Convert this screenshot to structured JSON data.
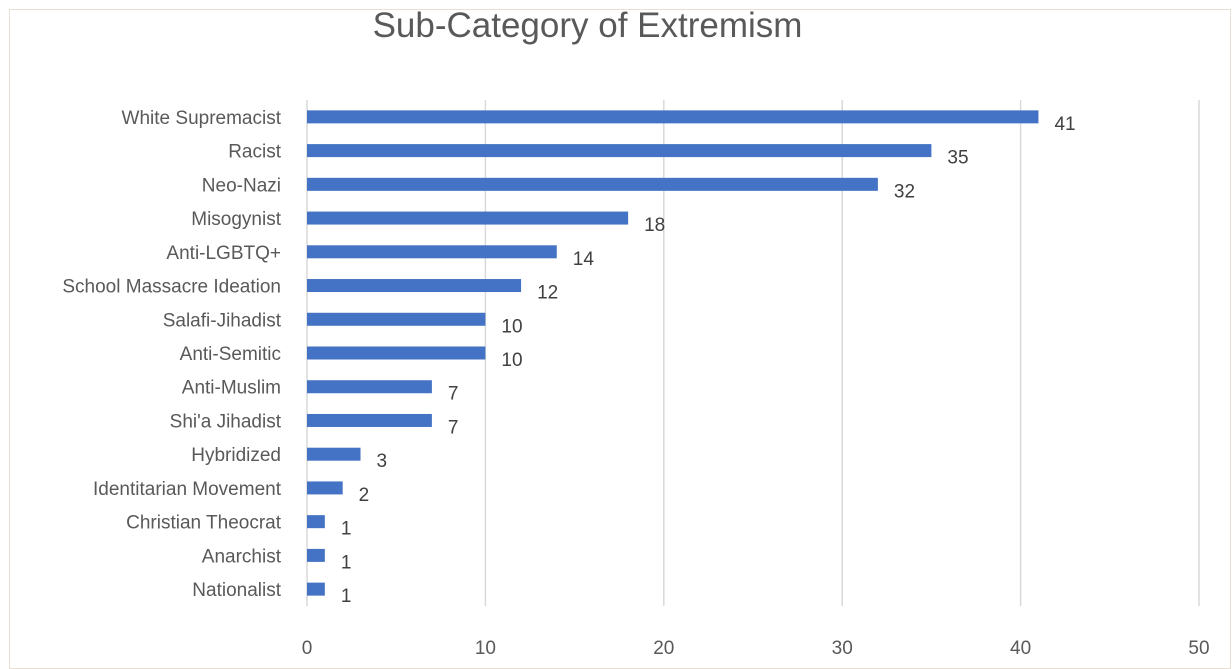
{
  "chart_data": {
    "type": "bar",
    "orientation": "horizontal",
    "title": "Sub-Category of Extremism",
    "xlabel": "",
    "ylabel": "",
    "xlim": [
      0,
      50
    ],
    "x_ticks": [
      0,
      10,
      20,
      30,
      40,
      50
    ],
    "grid": "vertical",
    "legend": "none",
    "bar_color": "#4472c4",
    "categories": [
      "White Supremacist",
      "Racist",
      "Neo-Nazi",
      "Misogynist",
      "Anti-LGBTQ+",
      "School Massacre Ideation",
      "Salafi-Jihadist",
      "Anti-Semitic",
      "Anti-Muslim",
      "Shi'a Jihadist",
      "Hybridized",
      "Identitarian Movement",
      "Christian Theocrat",
      "Anarchist",
      "Nationalist"
    ],
    "values": [
      41,
      35,
      32,
      18,
      14,
      12,
      10,
      10,
      7,
      7,
      3,
      2,
      1,
      1,
      1
    ],
    "data_labels": true
  }
}
